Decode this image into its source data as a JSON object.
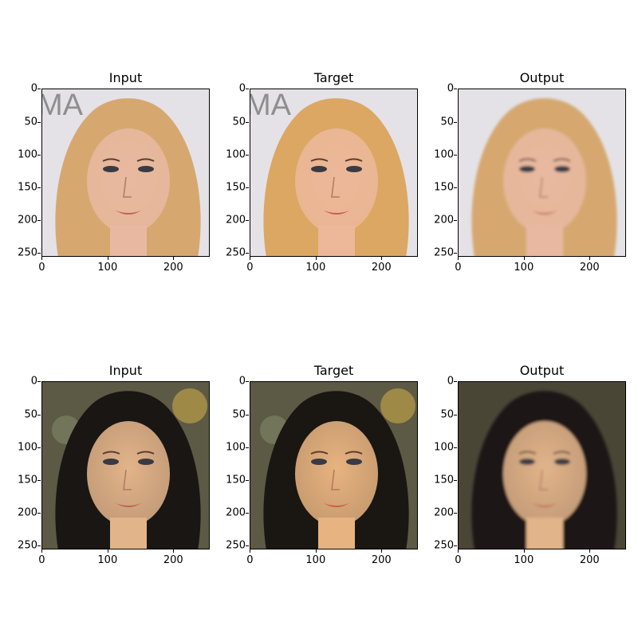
{
  "rows": [
    {
      "panels": [
        {
          "title": "Input",
          "subject": "blonde-woman",
          "variant": "input"
        },
        {
          "title": "Target",
          "subject": "blonde-woman",
          "variant": "target"
        },
        {
          "title": "Output",
          "subject": "blonde-woman",
          "variant": "output"
        }
      ]
    },
    {
      "panels": [
        {
          "title": "Input",
          "subject": "dark-haired-woman",
          "variant": "input"
        },
        {
          "title": "Target",
          "subject": "dark-haired-woman",
          "variant": "target"
        },
        {
          "title": "Output",
          "subject": "dark-haired-woman",
          "variant": "output"
        }
      ]
    }
  ],
  "axes": {
    "y_ticks": [
      "0",
      "50",
      "100",
      "150",
      "200",
      "250"
    ],
    "x_ticks": [
      "0",
      "100",
      "200"
    ],
    "y_values": [
      0,
      50,
      100,
      150,
      200,
      250
    ],
    "x_values": [
      0,
      100,
      200
    ],
    "extent": 256
  },
  "colors": {
    "blonde_hair": "#d6a870",
    "blonde_skin": "#e8b9a0",
    "blonde_bg": "#e4e2e6",
    "dark_hair": "#1a1613",
    "dark_skin": "#e2b48a",
    "dark_bg": "#5c5a44"
  }
}
